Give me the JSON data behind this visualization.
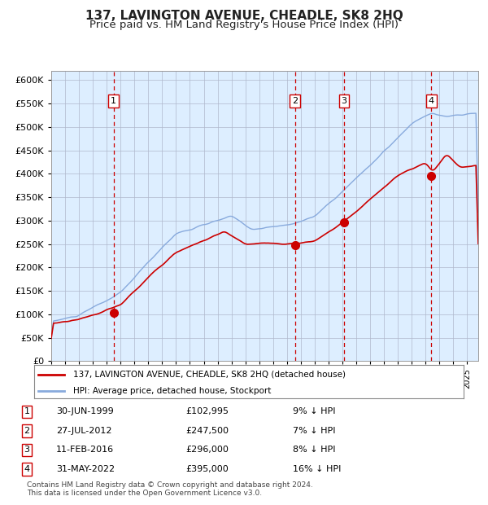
{
  "title": "137, LAVINGTON AVENUE, CHEADLE, SK8 2HQ",
  "subtitle": "Price paid vs. HM Land Registry's House Price Index (HPI)",
  "title_fontsize": 11,
  "subtitle_fontsize": 9.5,
  "background_color": "#ddeeff",
  "ylim": [
    0,
    620000
  ],
  "yticks": [
    0,
    50000,
    100000,
    150000,
    200000,
    250000,
    300000,
    350000,
    400000,
    450000,
    500000,
    550000,
    600000
  ],
  "xlim_start": 1995.0,
  "xlim_end": 2025.8,
  "sale_dates": [
    1999.5,
    2012.58,
    2016.12,
    2022.42
  ],
  "sale_prices": [
    102995,
    247500,
    296000,
    395000
  ],
  "sale_labels": [
    "1",
    "2",
    "3",
    "4"
  ],
  "red_line_color": "#cc0000",
  "blue_line_color": "#88aadd",
  "dashed_vline_color": "#cc0000",
  "grid_color": "#b0b8cc",
  "legend_entries": [
    "137, LAVINGTON AVENUE, CHEADLE, SK8 2HQ (detached house)",
    "HPI: Average price, detached house, Stockport"
  ],
  "table_rows": [
    [
      "1",
      "30-JUN-1999",
      "£102,995",
      "9% ↓ HPI"
    ],
    [
      "2",
      "27-JUL-2012",
      "£247,500",
      "7% ↓ HPI"
    ],
    [
      "3",
      "11-FEB-2016",
      "£296,000",
      "8% ↓ HPI"
    ],
    [
      "4",
      "31-MAY-2022",
      "£395,000",
      "16% ↓ HPI"
    ]
  ],
  "footer": "Contains HM Land Registry data © Crown copyright and database right 2024.\nThis data is licensed under the Open Government Licence v3.0."
}
